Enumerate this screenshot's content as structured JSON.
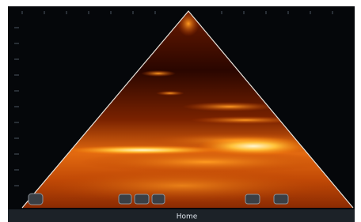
{
  "bottom_bar": {
    "home": "Home"
  }
}
